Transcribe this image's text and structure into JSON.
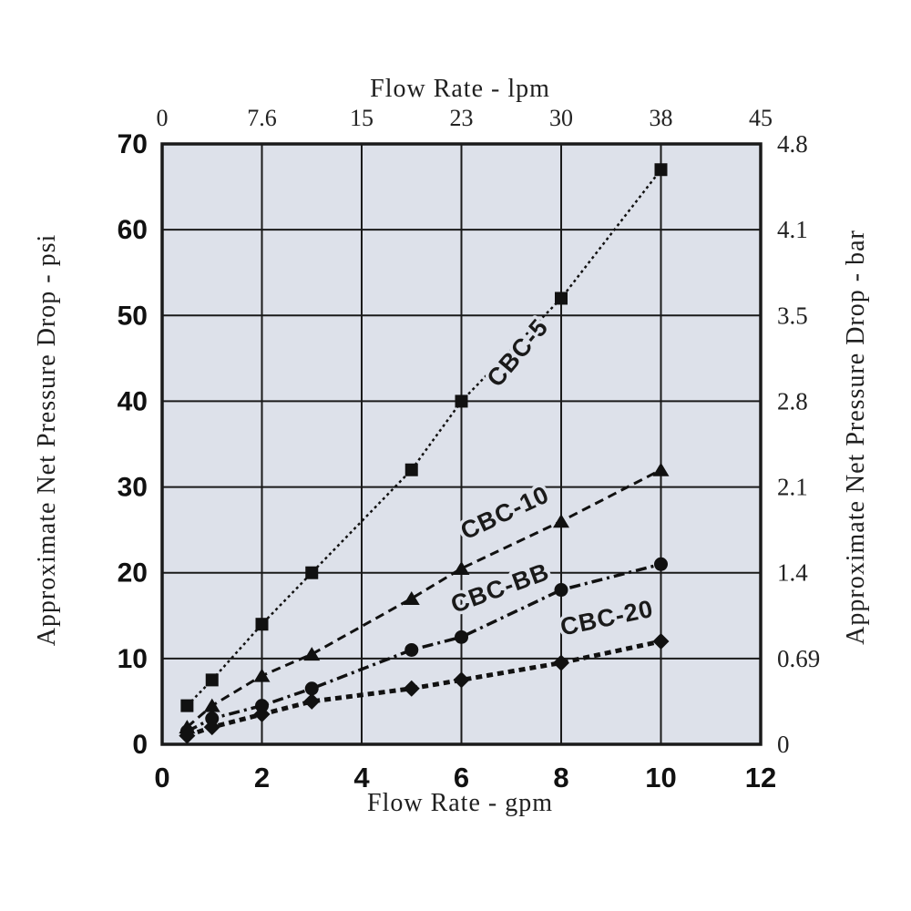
{
  "figure": {
    "background": "#ffffff",
    "plot_background": "#dde1ea",
    "grid_color": "#1a1a1a",
    "ink_color": "#111111"
  },
  "titles": {
    "top_axis": "Flow Rate - lpm",
    "bottom_axis": "Flow Rate - gpm",
    "left_axis": "Approximate Net Pressure Drop - psi",
    "right_axis": "Approximate Net Pressure Drop - bar"
  },
  "chart_data": {
    "type": "line",
    "grid": true,
    "x_axis_bottom": {
      "label": "Flow Rate - gpm",
      "ticks": [
        "0",
        "2",
        "4",
        "6",
        "8",
        "10",
        "12"
      ],
      "range": [
        0,
        12
      ]
    },
    "x_axis_top": {
      "label": "Flow Rate - lpm",
      "ticks": [
        "0",
        "7.6",
        "15",
        "23",
        "30",
        "38",
        "45"
      ]
    },
    "y_axis_left": {
      "label": "Approximate Net Pressure Drop - psi",
      "ticks": [
        "70",
        "60",
        "50",
        "40",
        "30",
        "20",
        "10",
        "0"
      ],
      "range": [
        0,
        70
      ]
    },
    "y_axis_right": {
      "label": "Approximate Net Pressure Drop - bar",
      "ticks": [
        "4.8",
        "4.1",
        "3.5",
        "2.8",
        "2.1",
        "1.4",
        "0.69",
        "0"
      ]
    },
    "series": [
      {
        "name": "CBC-5",
        "marker": "square",
        "line_style": "fine-dash",
        "x": [
          0.5,
          1,
          2,
          3,
          5,
          6,
          8,
          10
        ],
        "y_psi": [
          4.5,
          7.5,
          14,
          20,
          32,
          40,
          52,
          67
        ],
        "label_pos": {
          "x": 575,
          "y": 393,
          "angle": -50
        }
      },
      {
        "name": "CBC-10",
        "marker": "triangle",
        "line_style": "dashed",
        "x": [
          0.5,
          1,
          2,
          3,
          5,
          6,
          8,
          10
        ],
        "y_psi": [
          2,
          4.5,
          8,
          10.5,
          17,
          20.5,
          26,
          32
        ],
        "label_pos": {
          "x": 558,
          "y": 571,
          "angle": -25
        }
      },
      {
        "name": "CBC-BB",
        "marker": "circle",
        "line_style": "dash-dot",
        "x": [
          0.5,
          1,
          2,
          3,
          5,
          6,
          8,
          10
        ],
        "y_psi": [
          1.5,
          3,
          4.5,
          6.5,
          11,
          12.5,
          18,
          21
        ],
        "label_pos": {
          "x": 552,
          "y": 654,
          "angle": -20
        }
      },
      {
        "name": "CBC-20",
        "marker": "diamond",
        "line_style": "beaded",
        "x": [
          0.5,
          1,
          2,
          3,
          5,
          6,
          8,
          10
        ],
        "y_psi": [
          1,
          2,
          3.5,
          5,
          6.5,
          7.5,
          9.5,
          12
        ],
        "label_pos": {
          "x": 668,
          "y": 687,
          "angle": -12
        }
      }
    ]
  }
}
